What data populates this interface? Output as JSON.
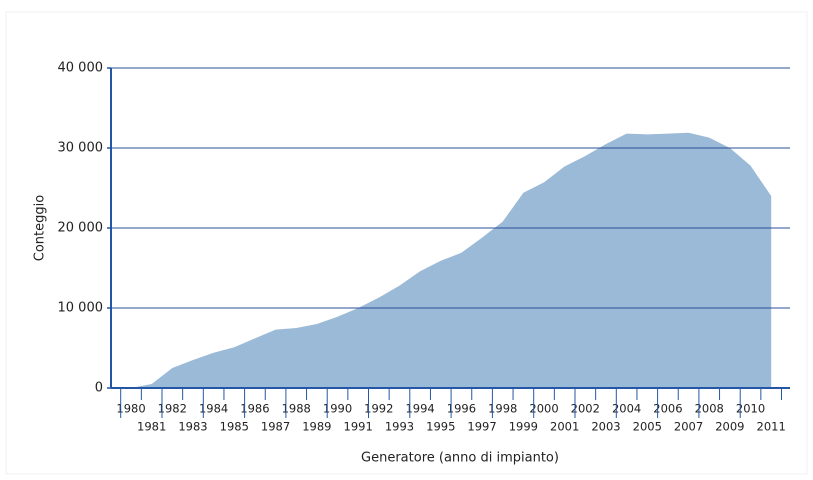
{
  "chart_data": {
    "type": "area",
    "xlabel": "Generatore (anno di impianto)",
    "ylabel": "Conteggio",
    "categories": [
      "1980",
      "1981",
      "1982",
      "1983",
      "1984",
      "1985",
      "1986",
      "1987",
      "1988",
      "1989",
      "1990",
      "1991",
      "1992",
      "1993",
      "1994",
      "1995",
      "1996",
      "1997",
      "1998",
      "1999",
      "2000",
      "2001",
      "2002",
      "2003",
      "2004",
      "2005",
      "2006",
      "2007",
      "2008",
      "2009",
      "2010",
      "2011"
    ],
    "values": [
      0,
      500,
      2500,
      3500,
      4400,
      5100,
      6200,
      7300,
      7500,
      8000,
      8900,
      10000,
      11300,
      12800,
      14600,
      15900,
      16900,
      18800,
      20800,
      24400,
      25700,
      27700,
      29000,
      30500,
      31800,
      31700,
      31800,
      31900,
      31300,
      30000,
      27800,
      24000
    ],
    "color": "#9bbad7",
    "ylim": [
      0,
      40000
    ],
    "yticks": [
      0,
      {
        "value": 10000,
        "label": "10 000"
      },
      {
        "value": 20000,
        "label": "20 000"
      },
      {
        "value": 30000,
        "label": "30 000"
      },
      {
        "value": 40000,
        "label": "40 000"
      }
    ],
    "grid": true
  }
}
